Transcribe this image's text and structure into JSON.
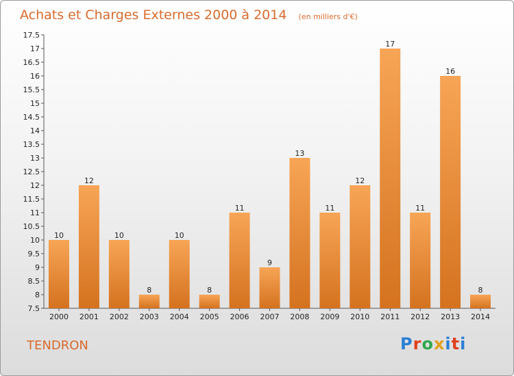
{
  "colors": {
    "accent": "#d86a2c",
    "bar_top": "#f7a556",
    "bar_bottom": "#d4721f",
    "logo": [
      "#2a7fd4",
      "#e0401f",
      "#2fa84f",
      "#e0a020",
      "#2a7fd4",
      "#e0401f"
    ]
  },
  "place": "TENDRON",
  "logo": {
    "text": "Proxiti",
    "letters": [
      "P",
      "r",
      "o",
      "x",
      "i",
      "t",
      "i"
    ]
  },
  "chart_data": {
    "type": "bar",
    "title": "Achats et Charges Externes 2000 à 2014",
    "unit": "(en milliers d'€)",
    "categories": [
      "2000",
      "2001",
      "2002",
      "2003",
      "2004",
      "2005",
      "2006",
      "2007",
      "2008",
      "2009",
      "2010",
      "2011",
      "2012",
      "2013",
      "2014"
    ],
    "values": [
      10,
      12,
      10,
      8,
      10,
      8,
      11,
      9,
      13,
      11,
      12,
      17,
      11,
      16,
      8
    ],
    "ylim": [
      7.5,
      17.5
    ],
    "yticks": [
      "7.5",
      "8",
      "8.5",
      "9",
      "9.5",
      "10",
      "10.5",
      "11",
      "11.5",
      "12",
      "12.5",
      "13",
      "13.5",
      "14",
      "14.5",
      "15",
      "15.5",
      "16",
      "16.5",
      "17",
      "17.5"
    ],
    "grid": false,
    "xlabel": "",
    "ylabel": ""
  }
}
